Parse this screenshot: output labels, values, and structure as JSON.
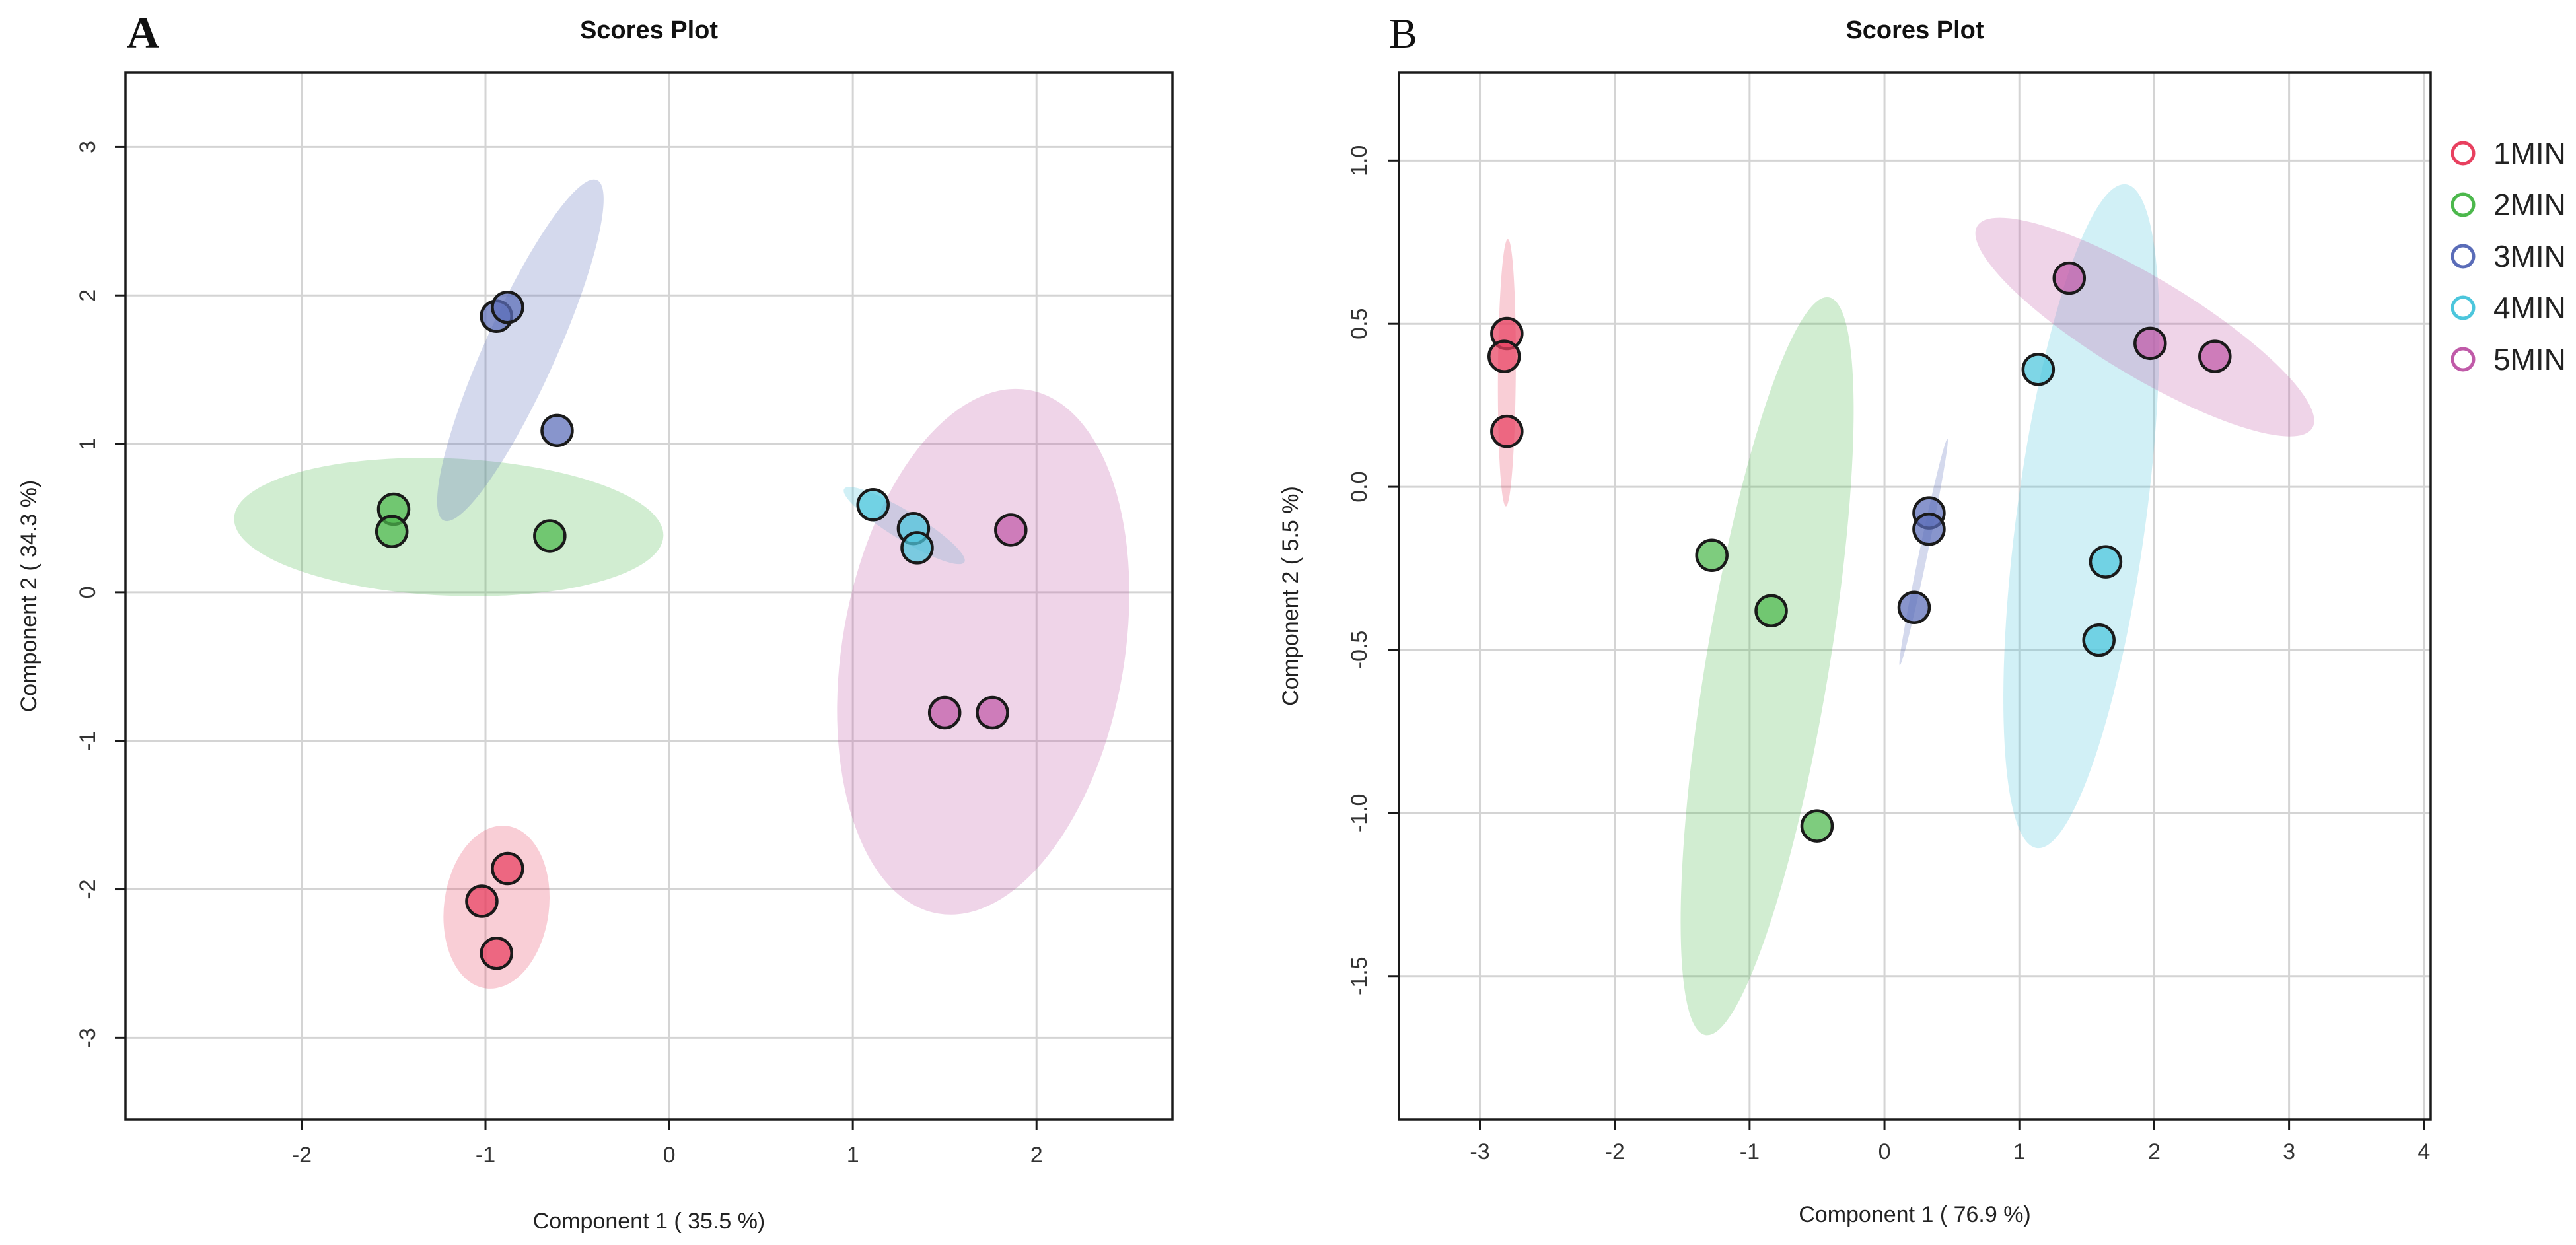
{
  "figure": {
    "legend": [
      {
        "label": "1MIN",
        "color": "#e8405f"
      },
      {
        "label": "2MIN",
        "color": "#4cb84c"
      },
      {
        "label": "3MIN",
        "color": "#5a6cb8"
      },
      {
        "label": "4MIN",
        "color": "#4cc6dc"
      },
      {
        "label": "5MIN",
        "color": "#c05aa8"
      }
    ]
  },
  "chart_data": [
    {
      "panel_label": "A",
      "type": "scatter",
      "title": "Scores Plot",
      "xlabel": "Component 1 ( 35.5 %)",
      "ylabel": "Component 2 ( 34.3 %)",
      "xlim": [
        -2.96,
        2.74
      ],
      "ylim": [
        -3.55,
        3.5
      ],
      "xticks": [
        -2,
        -1,
        0,
        1,
        2
      ],
      "yticks": [
        -3,
        -2,
        -1,
        0,
        1,
        2,
        3
      ],
      "xtick_labels": [
        "-2",
        "-1",
        "0",
        "1",
        "2"
      ],
      "ytick_labels": [
        "-3",
        "-2",
        "-1",
        "0",
        "1",
        "2",
        "3"
      ],
      "grid": true,
      "series": [
        {
          "name": "1MIN",
          "points": [
            [
              -1.02,
              -2.08
            ],
            [
              -0.88,
              -1.86
            ],
            [
              -0.94,
              -2.43
            ]
          ],
          "ellipse": {
            "cx": -0.94,
            "cy": -2.12,
            "rx": 0.55,
            "ry": 0.13,
            "angle": 84
          }
        },
        {
          "name": "2MIN",
          "points": [
            [
              -1.5,
              0.56
            ],
            [
              -1.51,
              0.41
            ],
            [
              -0.65,
              0.38
            ]
          ],
          "ellipse": {
            "cx": -1.2,
            "cy": 0.44,
            "rx": 1.17,
            "ry": 0.21,
            "angle": -3
          }
        },
        {
          "name": "3MIN",
          "points": [
            [
              -0.94,
              1.86
            ],
            [
              -0.88,
              1.92
            ],
            [
              -0.61,
              1.09
            ]
          ],
          "ellipse": {
            "cx": -0.81,
            "cy": 1.63,
            "rx": 1.22,
            "ry": 0.09,
            "angle": 70
          }
        },
        {
          "name": "4MIN",
          "points": [
            [
              1.11,
              0.59
            ],
            [
              1.33,
              0.43
            ],
            [
              1.35,
              0.3
            ]
          ],
          "ellipse": {
            "cx": 1.28,
            "cy": 0.45,
            "rx": 0.41,
            "ry": 0.04,
            "angle": -37
          }
        },
        {
          "name": "5MIN",
          "points": [
            [
              1.86,
              0.42
            ],
            [
              1.5,
              -0.81
            ],
            [
              1.76,
              -0.81
            ]
          ],
          "ellipse": {
            "cx": 1.71,
            "cy": -0.4,
            "rx": 1.78,
            "ry": 0.35,
            "angle": 82
          }
        }
      ]
    },
    {
      "panel_label": "B",
      "type": "scatter",
      "title": "Scores Plot",
      "xlabel": "Component 1 ( 76.9 %)",
      "ylabel": "Component 2 ( 5.5 %)",
      "xlim": [
        -3.6,
        4.05
      ],
      "ylim": [
        -1.94,
        1.27
      ],
      "xticks": [
        -3,
        -2,
        -1,
        0,
        1,
        2,
        3,
        4
      ],
      "yticks": [
        -1.5,
        -1.0,
        -0.5,
        0.0,
        0.5,
        1.0
      ],
      "xtick_labels": [
        "-3",
        "-2",
        "-1",
        "0",
        "1",
        "2",
        "3",
        "4"
      ],
      "ytick_labels": [
        "-1.5",
        "-1.0",
        "-0.5",
        "0.0",
        "0.5",
        "1.0"
      ],
      "grid": true,
      "series": [
        {
          "name": "1MIN",
          "points": [
            [
              -2.8,
              0.47
            ],
            [
              -2.82,
              0.4
            ],
            [
              -2.8,
              0.17
            ]
          ],
          "ellipse": {
            "cx": -2.8,
            "cy": 0.35,
            "rx": 0.41,
            "ry": 0.03,
            "angle": 89
          }
        },
        {
          "name": "2MIN",
          "points": [
            [
              -1.28,
              -0.21
            ],
            [
              -0.84,
              -0.38
            ],
            [
              -0.5,
              -1.04
            ]
          ],
          "ellipse": {
            "cx": -0.87,
            "cy": -0.55,
            "rx": 1.22,
            "ry": 0.16,
            "angle": 68
          }
        },
        {
          "name": "3MIN",
          "points": [
            [
              0.33,
              -0.08
            ],
            [
              0.33,
              -0.13
            ],
            [
              0.22,
              -0.37
            ]
          ],
          "ellipse": {
            "cx": 0.29,
            "cy": -0.2,
            "rx": 0.39,
            "ry": 0.01,
            "angle": 63
          }
        },
        {
          "name": "4MIN",
          "points": [
            [
              1.14,
              0.36
            ],
            [
              1.64,
              -0.23
            ],
            [
              1.59,
              -0.47
            ]
          ],
          "ellipse": {
            "cx": 1.46,
            "cy": -0.09,
            "rx": 1.07,
            "ry": 0.18,
            "angle": 72
          }
        },
        {
          "name": "5MIN",
          "points": [
            [
              1.37,
              0.64
            ],
            [
              1.97,
              0.44
            ],
            [
              2.45,
              0.4
            ]
          ],
          "ellipse": {
            "cx": 1.93,
            "cy": 0.49,
            "rx": 1.28,
            "ry": 0.07,
            "angle": -14
          }
        }
      ]
    }
  ]
}
